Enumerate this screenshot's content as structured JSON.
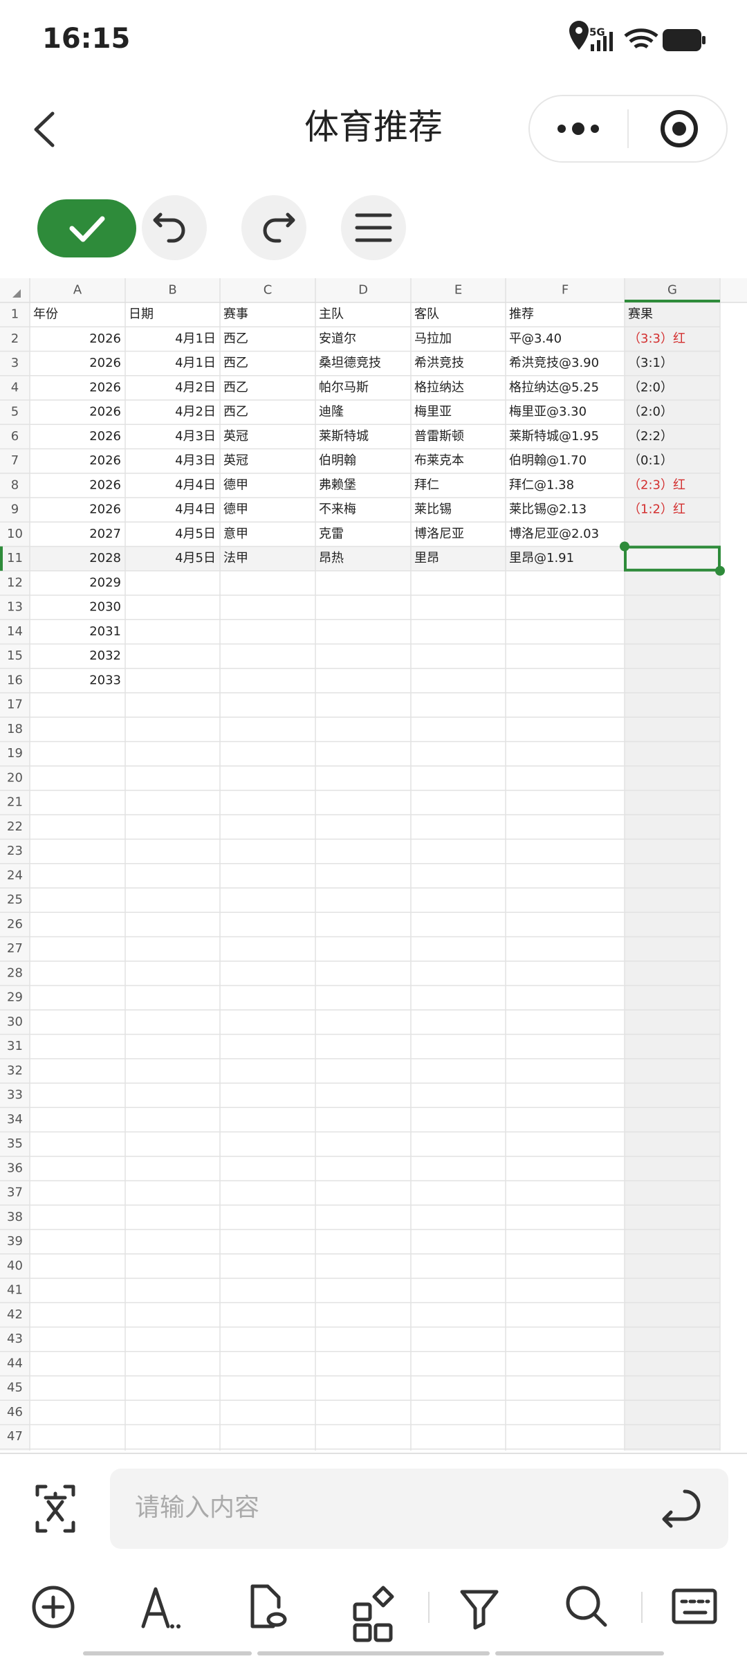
{
  "status_bar": {
    "time": "16:15",
    "network": "5G"
  },
  "header": {
    "title": "体育推荐"
  },
  "sheet": {
    "selected_cell": "G11",
    "columns": [
      "A",
      "B",
      "C",
      "D",
      "E",
      "F",
      "G"
    ],
    "column_align": [
      "right",
      "right",
      "left",
      "left",
      "left",
      "left",
      "left"
    ],
    "row_numbers": [
      1,
      2,
      3,
      4,
      5,
      6,
      7,
      8,
      9,
      10,
      11,
      12,
      13,
      14,
      15,
      16,
      17,
      18,
      19,
      20,
      21,
      22,
      23,
      24,
      25,
      26,
      27,
      28,
      29,
      30,
      31,
      32,
      33,
      34,
      35,
      36,
      37,
      38,
      39,
      40,
      41,
      42,
      43,
      44,
      45,
      46,
      47
    ],
    "rows": [
      [
        {
          "text": "年份",
          "align": "left"
        },
        {
          "text": "日期",
          "align": "left"
        },
        "赛事",
        "主队",
        "客队",
        "推荐",
        "赛果"
      ],
      [
        2026,
        "4月1日",
        "西乙",
        "安道尔",
        "马拉加",
        "平@3.40",
        {
          "text": "（3:3）红",
          "color": "#d32f2f"
        }
      ],
      [
        2026,
        "4月1日",
        "西乙",
        "桑坦德竞技",
        "希洪竞技",
        "希洪竞技@3.90",
        "（3:1）"
      ],
      [
        2026,
        "4月2日",
        "西乙",
        "帕尔马斯",
        "格拉纳达",
        "格拉纳达@5.25",
        "（2:0）"
      ],
      [
        2026,
        "4月2日",
        "西乙",
        "迪隆",
        "梅里亚",
        "梅里亚@3.30",
        "（2:0）"
      ],
      [
        2026,
        "4月3日",
        "英冠",
        "莱斯特城",
        "普雷斯顿",
        "莱斯特城@1.95",
        "（2:2）"
      ],
      [
        2026,
        "4月3日",
        "英冠",
        "伯明翰",
        "布莱克本",
        "伯明翰@1.70",
        "（0:1）"
      ],
      [
        2026,
        "4月4日",
        "德甲",
        "弗赖堡",
        "拜仁",
        "拜仁@1.38",
        {
          "text": "（2:3）红",
          "color": "#d32f2f"
        }
      ],
      [
        2026,
        "4月4日",
        "德甲",
        "不来梅",
        "莱比锡",
        "莱比锡@2.13",
        {
          "text": "（1:2）红",
          "color": "#d32f2f"
        }
      ],
      [
        2027,
        "4月5日",
        "意甲",
        "克雷",
        "博洛尼亚",
        "博洛尼亚@2.03"
      ],
      [
        2028,
        "4月5日",
        "法甲",
        "昂热",
        "里昂",
        "里昂@1.91"
      ],
      [
        2029
      ],
      [
        2030
      ],
      [
        2031
      ],
      [
        2032
      ],
      [
        2033
      ]
    ]
  },
  "input": {
    "placeholder": "请输入内容"
  }
}
